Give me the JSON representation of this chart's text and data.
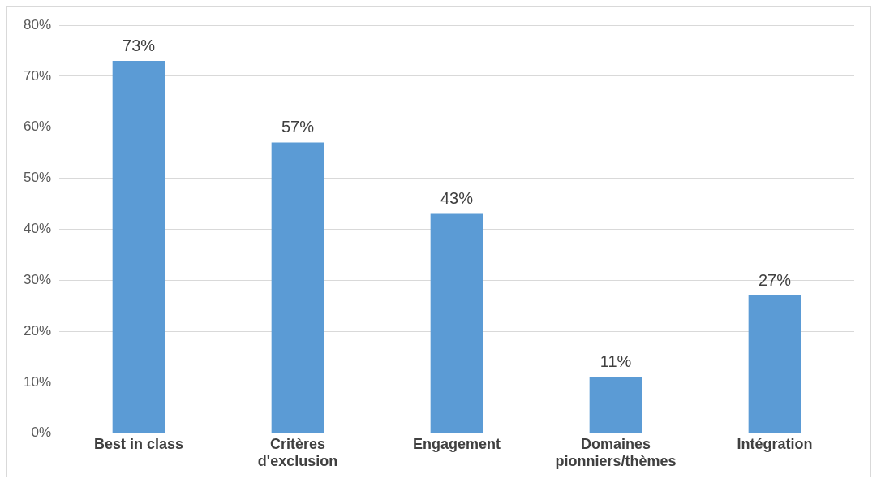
{
  "chart_data": {
    "type": "bar",
    "categories": [
      "Best in class",
      "Critères d'exclusion",
      "Engagement",
      "Domaines pionniers/thèmes",
      "Intégration"
    ],
    "values": [
      73,
      57,
      43,
      11,
      27
    ],
    "value_labels": [
      "73%",
      "57%",
      "43%",
      "11%",
      "27%"
    ],
    "color": "#5b9bd5",
    "ylim": [
      0,
      80
    ],
    "yticks": [
      {
        "value": 0,
        "label": "0%"
      },
      {
        "value": 10,
        "label": "10%"
      },
      {
        "value": 20,
        "label": "20%"
      },
      {
        "value": 30,
        "label": "30%"
      },
      {
        "value": 40,
        "label": "40%"
      },
      {
        "value": 50,
        "label": "50%"
      },
      {
        "value": 60,
        "label": "60%"
      },
      {
        "value": 70,
        "label": "70%"
      },
      {
        "value": 80,
        "label": "80%"
      }
    ],
    "grid": "y"
  }
}
